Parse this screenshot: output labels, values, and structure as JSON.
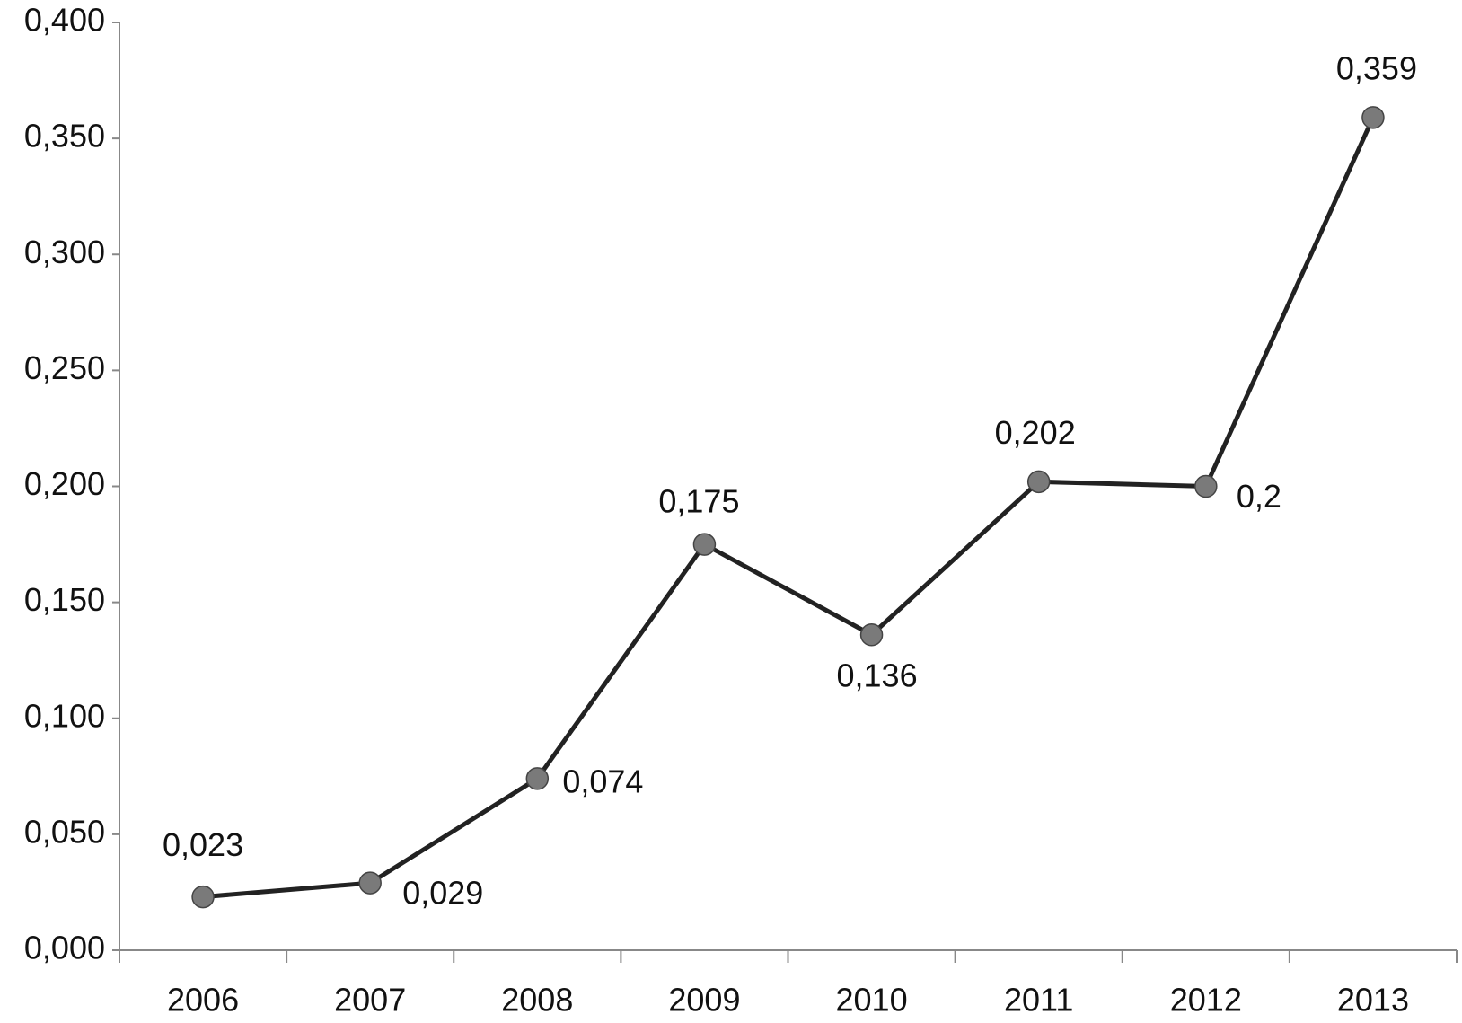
{
  "chart_data": {
    "type": "line",
    "categories": [
      "2006",
      "2007",
      "2008",
      "2009",
      "2010",
      "2011",
      "2012",
      "2013"
    ],
    "values": [
      0.023,
      0.029,
      0.074,
      0.175,
      0.136,
      0.202,
      0.2,
      0.359
    ],
    "value_labels": [
      "0,023",
      "0,029",
      "0,074",
      "0,175",
      "0,136",
      "0,202",
      "0,2",
      "0,359"
    ],
    "color": "#222222",
    "marker_color": "#7a7a7a",
    "ylim": [
      0,
      0.4
    ],
    "yticks": [
      {
        "value": 0,
        "label": "0,000"
      },
      {
        "value": 0.05,
        "label": "0,050"
      },
      {
        "value": 0.1,
        "label": "0,100"
      },
      {
        "value": 0.15,
        "label": "0,150"
      },
      {
        "value": 0.2,
        "label": "0,200"
      },
      {
        "value": 0.25,
        "label": "0,250"
      },
      {
        "value": 0.3,
        "label": "0,300"
      },
      {
        "value": 0.35,
        "label": "0,350"
      },
      {
        "value": 0.4,
        "label": "0,400"
      }
    ],
    "grid": false
  }
}
